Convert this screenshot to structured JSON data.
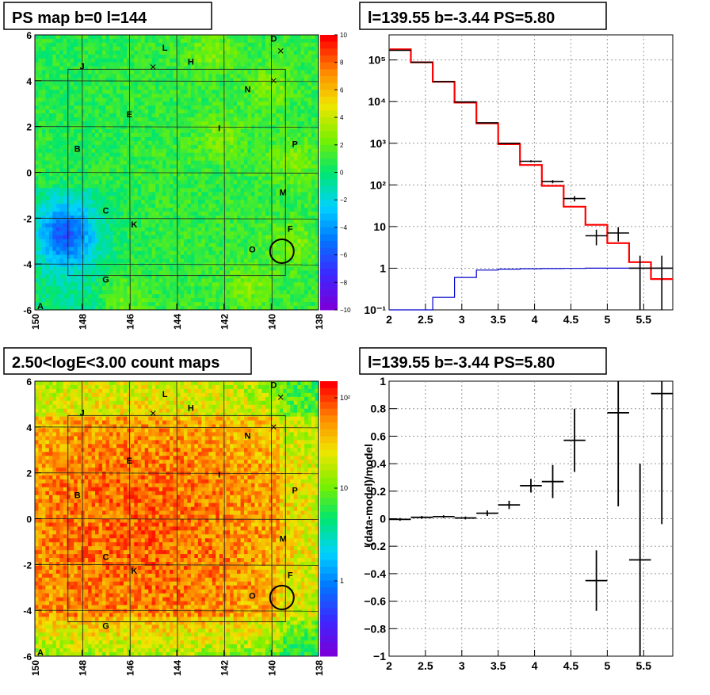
{
  "chart_data": [
    {
      "type": "heatmap",
      "title": "PS map b=0 l=144",
      "x_ticks": [
        "150",
        "148",
        "146",
        "144",
        "142",
        "140",
        "138"
      ],
      "y_ticks": [
        "6",
        "4",
        "2",
        "0",
        "-2",
        "-4",
        "-6"
      ],
      "xlim": [
        150,
        138
      ],
      "ylim": [
        -6,
        6
      ],
      "colorbar": {
        "min": -10,
        "max": 10,
        "ticks": [
          "10",
          "8",
          "6",
          "4",
          "2",
          "0",
          "−2",
          "−4",
          "−6",
          "−8",
          "−10"
        ]
      },
      "corner_label": "A",
      "sources": [
        {
          "label": "B",
          "l": 148.2,
          "b": 0.9
        },
        {
          "label": "C",
          "l": 147.0,
          "b": -1.8
        },
        {
          "label": "D",
          "l": 139.9,
          "b": 5.7
        },
        {
          "label": "E",
          "l": 146.0,
          "b": 2.4
        },
        {
          "label": "F",
          "l": 139.2,
          "b": -2.6
        },
        {
          "label": "G",
          "l": 147.0,
          "b": -4.8
        },
        {
          "label": "H",
          "l": 143.4,
          "b": 4.7
        },
        {
          "label": "I",
          "l": 142.2,
          "b": 1.8
        },
        {
          "label": "J",
          "l": 148.0,
          "b": 4.5
        },
        {
          "label": "K",
          "l": 145.8,
          "b": -2.4
        },
        {
          "label": "L",
          "l": 144.5,
          "b": 5.3
        },
        {
          "label": "M",
          "l": 139.5,
          "b": -1.0
        },
        {
          "label": "N",
          "l": 141.0,
          "b": 3.5
        },
        {
          "label": "O",
          "l": 140.8,
          "b": -3.5
        },
        {
          "label": "P",
          "l": 139.0,
          "b": 1.1
        }
      ]
    },
    {
      "type": "line",
      "title": "l=139.55 b=-3.44 PS=5.80",
      "y_scale": "log",
      "xlim": [
        2,
        5.9
      ],
      "ylim": [
        0.1,
        400000
      ],
      "x_ticks": [
        "2",
        "2.5",
        "3",
        "3.5",
        "4",
        "4.5",
        "5",
        "5.5"
      ],
      "y_ticks": [
        "10⁻¹",
        "1",
        "10",
        "10²",
        "10³",
        "10⁴",
        "10⁵"
      ],
      "bin_edges": [
        2.0,
        2.3,
        2.6,
        2.9,
        3.2,
        3.5,
        3.8,
        4.1,
        4.4,
        4.7,
        5.0,
        5.3,
        5.6,
        5.9
      ],
      "series": [
        {
          "color": "#000000",
          "values": [
            170000,
            88000,
            30000,
            9800,
            3100,
            1000,
            370,
            120,
            47,
            6,
            7,
            1,
            1
          ]
        },
        {
          "color": "#ff0000",
          "values": [
            180000,
            88000,
            30000,
            9500,
            3000,
            950,
            300,
            95,
            30,
            11,
            4,
            1.4,
            0.55
          ]
        },
        {
          "color": "#0000cc",
          "values": [
            0.05,
            0.08,
            0.2,
            0.6,
            0.9,
            0.95,
            0.97,
            0.98,
            0.99,
            1,
            1,
            1,
            1
          ]
        }
      ]
    },
    {
      "type": "heatmap",
      "title": "2.50<logE<3.00 count maps",
      "x_ticks": [
        "150",
        "148",
        "146",
        "144",
        "142",
        "140",
        "138"
      ],
      "y_ticks": [
        "6",
        "4",
        "2",
        "0",
        "-2",
        "-4",
        "-6"
      ],
      "xlim": [
        150,
        138
      ],
      "ylim": [
        -6,
        6
      ],
      "colorbar": {
        "scale": "log",
        "ticks": [
          "10²",
          "10",
          "1"
        ]
      },
      "corner_label": "A"
    },
    {
      "type": "scatter",
      "title": "l=139.55 b=-3.44 PS=5.80",
      "ylabel": "(data-model)/model",
      "xlim": [
        2,
        5.9
      ],
      "ylim": [
        -1,
        1
      ],
      "x_ticks": [
        "2",
        "2.5",
        "3",
        "3.5",
        "4",
        "4.5",
        "5",
        "5.5"
      ],
      "y_ticks": [
        "1",
        "0.8",
        "0.6",
        "0.4",
        "0.2",
        "0",
        "−0.2",
        "−0.4",
        "−0.6",
        "−0.8",
        "−1"
      ],
      "points": [
        {
          "x": 2.15,
          "y": -0.005,
          "err": 0.01
        },
        {
          "x": 2.45,
          "y": 0.01,
          "err": 0.01
        },
        {
          "x": 2.75,
          "y": 0.015,
          "err": 0.01
        },
        {
          "x": 3.05,
          "y": 0.005,
          "err": 0.01
        },
        {
          "x": 3.35,
          "y": 0.04,
          "err": 0.02
        },
        {
          "x": 3.65,
          "y": 0.1,
          "err": 0.03
        },
        {
          "x": 3.95,
          "y": 0.24,
          "err": 0.05
        },
        {
          "x": 4.25,
          "y": 0.27,
          "err": 0.12
        },
        {
          "x": 4.55,
          "y": 0.57,
          "err": 0.23
        },
        {
          "x": 4.85,
          "y": -0.45,
          "err": 0.22
        },
        {
          "x": 5.15,
          "y": 0.77,
          "err": 0.68
        },
        {
          "x": 5.45,
          "y": -0.3,
          "err": 0.7
        },
        {
          "x": 5.75,
          "y": 0.91,
          "err": 0.95
        }
      ]
    }
  ]
}
